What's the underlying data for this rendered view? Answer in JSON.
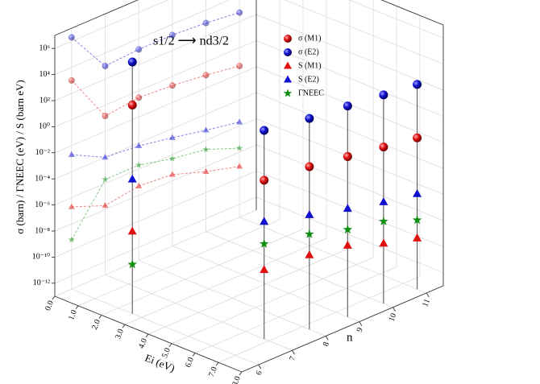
{
  "chart_data": {
    "type": "scatter3d",
    "annotation": "s1/2 ⟶ nd3/2",
    "x_label": "Ei (eV)",
    "y_label": "n",
    "z_label": "σ (barn)  /  ΓNEEC (eV)  /  S (barn eV)",
    "ei": [
      2.6,
      6.8,
      7.3,
      7.5,
      7.6,
      7.6
    ],
    "n": [
      6,
      7,
      8,
      9,
      10,
      11
    ],
    "xlim": [
      0,
      8
    ],
    "xticks": [
      {
        "value": 0,
        "label": "0.0"
      },
      {
        "value": 1,
        "label": "1.0"
      },
      {
        "value": 2,
        "label": "2.0"
      },
      {
        "value": 3,
        "label": "3.0"
      },
      {
        "value": 4,
        "label": "4.0"
      },
      {
        "value": 5,
        "label": "5.0"
      },
      {
        "value": 6,
        "label": "6.0"
      },
      {
        "value": 7,
        "label": "7.0"
      },
      {
        "value": 8,
        "label": "8.0"
      }
    ],
    "ylim": [
      5.5,
      11.5
    ],
    "yticks": [
      6,
      7,
      8,
      9,
      10,
      11
    ],
    "zlim": [
      1e-13,
      10000000.0
    ],
    "zscale": "log",
    "zticks": [
      {
        "value": 1e-12,
        "label": "10⁻¹²"
      },
      {
        "value": 1e-10,
        "label": "10⁻¹⁰"
      },
      {
        "value": 1e-08,
        "label": "10⁻⁸"
      },
      {
        "value": 1e-06,
        "label": "10⁻⁶"
      },
      {
        "value": 0.0001,
        "label": "10⁻⁴"
      },
      {
        "value": 0.01,
        "label": "10⁻²"
      },
      {
        "value": 1,
        "label": "10⁰"
      },
      {
        "value": 100,
        "label": "10²"
      },
      {
        "value": 10000,
        "label": "10⁴"
      },
      {
        "value": 1000000,
        "label": "10⁶"
      }
    ],
    "grid": true,
    "series": [
      {
        "name": "σ (M1)",
        "color": "#e01010",
        "marker": "circle",
        "values": [
          1000,
          0.15,
          0.3,
          0.2,
          0.1,
          0.04
        ]
      },
      {
        "name": "σ (E2)",
        "color": "#1010d0",
        "marker": "circle",
        "values": [
          2000000,
          1000,
          1500,
          1500,
          1000,
          500
        ]
      },
      {
        "name": "S (M1)",
        "color": "#e01010",
        "marker": "triangle",
        "values": [
          2e-07,
          2e-08,
          5e-08,
          3e-08,
          4e-09,
          8e-10
        ]
      },
      {
        "name": "S (E2)",
        "color": "#1010d0",
        "marker": "triangle",
        "values": [
          0.002,
          0.0001,
          6e-05,
          2e-05,
          6e-06,
          2e-06
        ]
      },
      {
        "name": "ΓNEEC",
        "color": "#109010",
        "marker": "star",
        "values": [
          6e-10,
          2e-06,
          2e-06,
          5e-07,
          2e-07,
          2e-08
        ]
      }
    ]
  }
}
